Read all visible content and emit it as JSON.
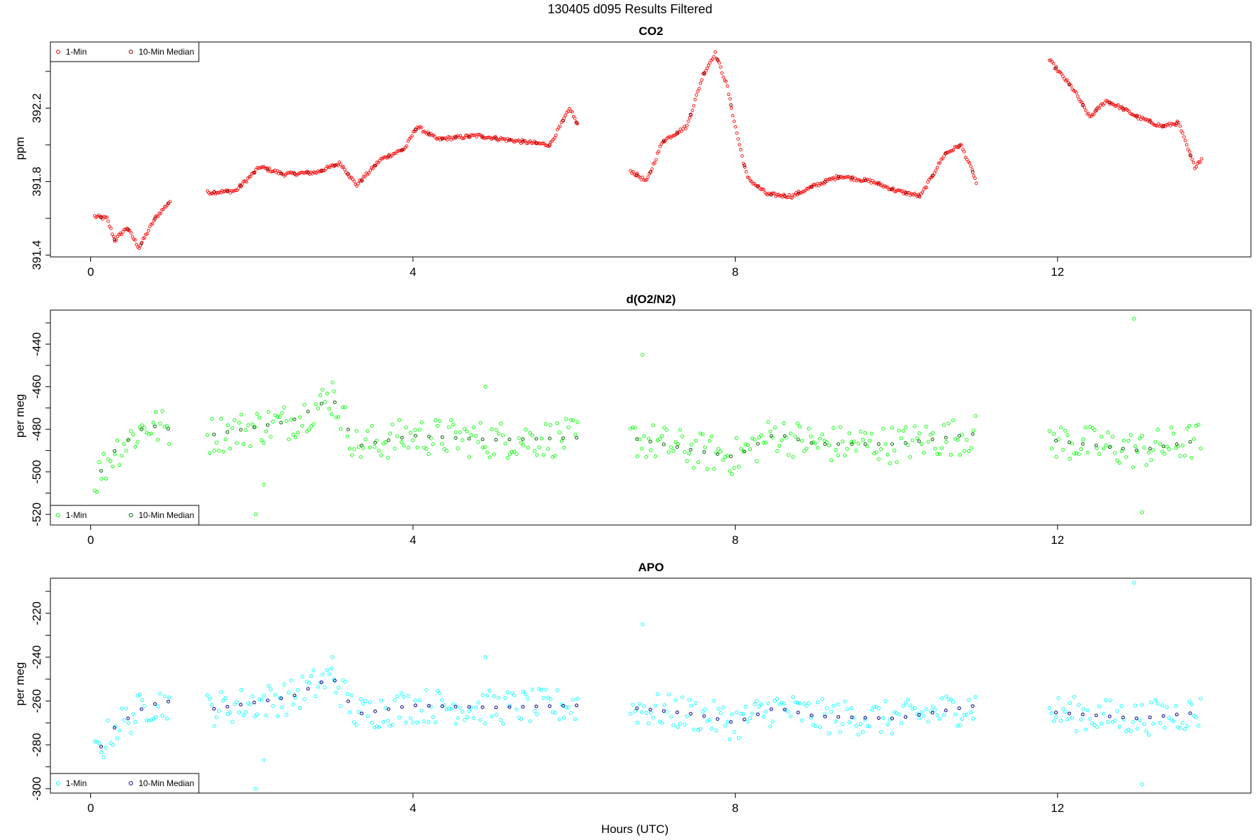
{
  "figure": {
    "title": "130405   d095   Results Filtered",
    "xlabel": "Hours (UTC)"
  },
  "chart_data": [
    {
      "type": "scatter",
      "title": "CO2",
      "ylabel": "ppm",
      "xlim": [
        -0.5,
        14.4
      ],
      "ylim": [
        391.39,
        392.56
      ],
      "xticks": [
        "0",
        "4",
        "8",
        "12"
      ],
      "yticks": [
        "391.4",
        "391.8",
        "392.2"
      ],
      "grid": false,
      "legend": {
        "position": "top-left",
        "entries": [
          "1-Min",
          "10-Min Median"
        ]
      },
      "colors": {
        "one_min": "#ff0000",
        "median": "#8b0000"
      },
      "series": [
        {
          "name": "1-Min",
          "x_range": [
            [
              0.05,
              1.0
            ],
            [
              1.45,
              6.05
            ],
            [
              6.7,
              11.0
            ],
            [
              11.9,
              13.8
            ]
          ],
          "y_path": [
            [
              0.05,
              391.61
            ],
            [
              0.2,
              391.6
            ],
            [
              0.3,
              391.48
            ],
            [
              0.45,
              391.55
            ],
            [
              0.6,
              391.44
            ],
            [
              0.8,
              391.6
            ],
            [
              1.0,
              391.7
            ],
            [
              1.45,
              391.74
            ],
            [
              1.8,
              391.75
            ],
            [
              2.1,
              391.88
            ],
            [
              2.4,
              391.84
            ],
            [
              2.8,
              391.85
            ],
            [
              3.1,
              391.9
            ],
            [
              3.3,
              391.78
            ],
            [
              3.6,
              391.92
            ],
            [
              3.9,
              391.98
            ],
            [
              4.05,
              392.1
            ],
            [
              4.3,
              392.03
            ],
            [
              4.8,
              392.05
            ],
            [
              5.3,
              392.02
            ],
            [
              5.7,
              392.0
            ],
            [
              5.95,
              392.2
            ],
            [
              6.05,
              392.1
            ],
            [
              6.7,
              391.86
            ],
            [
              6.9,
              391.8
            ],
            [
              7.1,
              392.02
            ],
            [
              7.4,
              392.1
            ],
            [
              7.6,
              392.38
            ],
            [
              7.75,
              392.5
            ],
            [
              7.9,
              392.32
            ],
            [
              8.0,
              392.1
            ],
            [
              8.15,
              391.82
            ],
            [
              8.4,
              391.73
            ],
            [
              8.7,
              391.72
            ],
            [
              9.0,
              391.78
            ],
            [
              9.3,
              391.83
            ],
            [
              9.7,
              391.8
            ],
            [
              10.0,
              391.75
            ],
            [
              10.3,
              391.72
            ],
            [
              10.6,
              391.95
            ],
            [
              10.8,
              392.0
            ],
            [
              10.85,
              391.95
            ],
            [
              10.95,
              391.85
            ],
            [
              11.0,
              391.78
            ],
            [
              11.9,
              392.46
            ],
            [
              12.2,
              392.3
            ],
            [
              12.4,
              392.15
            ],
            [
              12.6,
              392.24
            ],
            [
              12.8,
              392.2
            ],
            [
              13.0,
              392.15
            ],
            [
              13.3,
              392.1
            ],
            [
              13.5,
              392.12
            ],
            [
              13.6,
              392.0
            ],
            [
              13.7,
              391.88
            ],
            [
              13.8,
              391.93
            ]
          ]
        }
      ]
    },
    {
      "type": "scatter",
      "title": "d(O2/N2)",
      "ylabel": "per meg",
      "xlim": [
        -0.5,
        14.4
      ],
      "ylim": [
        -525,
        -424
      ],
      "xticks": [
        "0",
        "4",
        "8",
        "12"
      ],
      "yticks": [
        "-520",
        "-500",
        "-480",
        "-460",
        "-440"
      ],
      "grid": false,
      "legend": {
        "position": "bottom-left",
        "entries": [
          "1-Min",
          "10-Min Median"
        ]
      },
      "colors": {
        "one_min": "#00ff00",
        "median": "#006400"
      },
      "series": [
        {
          "name": "1-Min",
          "x_range": [
            [
              0.05,
              1.0
            ],
            [
              1.45,
              6.05
            ],
            [
              6.7,
              11.0
            ],
            [
              11.9,
              13.8
            ]
          ],
          "y_path": [
            [
              0.05,
              -504
            ],
            [
              0.3,
              -490
            ],
            [
              0.7,
              -478
            ],
            [
              1.0,
              -480
            ],
            [
              1.45,
              -483
            ],
            [
              2.5,
              -476
            ],
            [
              3.0,
              -465
            ],
            [
              3.3,
              -488
            ],
            [
              4.0,
              -483
            ],
            [
              5.0,
              -485
            ],
            [
              6.05,
              -484
            ],
            [
              6.7,
              -484
            ],
            [
              7.5,
              -490
            ],
            [
              8.0,
              -493
            ],
            [
              8.5,
              -482
            ],
            [
              9.0,
              -487
            ],
            [
              10.0,
              -487
            ],
            [
              11.0,
              -482
            ],
            [
              11.9,
              -485
            ],
            [
              13.0,
              -490
            ],
            [
              13.8,
              -485
            ]
          ],
          "outliers": [
            [
              2.05,
              -520
            ],
            [
              2.15,
              -506
            ],
            [
              3.0,
              -458
            ],
            [
              4.9,
              -460
            ],
            [
              6.85,
              -445
            ],
            [
              12.95,
              -428
            ],
            [
              13.05,
              -519
            ]
          ]
        }
      ]
    },
    {
      "type": "scatter",
      "title": "APO",
      "ylabel": "per meg",
      "xlim": [
        -0.5,
        14.4
      ],
      "ylim": [
        -302,
        -204
      ],
      "xticks": [
        "0",
        "4",
        "8",
        "12"
      ],
      "yticks": [
        "-300",
        "-280",
        "-260",
        "-240",
        "-220"
      ],
      "grid": false,
      "legend": {
        "position": "bottom-left",
        "entries": [
          "1-Min",
          "10-Min Median"
        ]
      },
      "colors": {
        "one_min": "#00ffff",
        "median": "#00008b"
      },
      "series": [
        {
          "name": "1-Min",
          "x_range": [
            [
              0.05,
              1.0
            ],
            [
              1.45,
              6.05
            ],
            [
              6.7,
              11.0
            ],
            [
              11.9,
              13.8
            ]
          ],
          "y_path": [
            [
              0.05,
              -285
            ],
            [
              0.3,
              -272
            ],
            [
              0.7,
              -262
            ],
            [
              1.0,
              -260
            ],
            [
              1.45,
              -264
            ],
            [
              2.5,
              -258
            ],
            [
              3.0,
              -249
            ],
            [
              3.3,
              -266
            ],
            [
              4.0,
              -262
            ],
            [
              5.0,
              -263
            ],
            [
              6.05,
              -262
            ],
            [
              6.7,
              -263
            ],
            [
              7.5,
              -266
            ],
            [
              8.0,
              -270
            ],
            [
              8.5,
              -263
            ],
            [
              9.0,
              -267
            ],
            [
              10.0,
              -268
            ],
            [
              11.0,
              -262
            ],
            [
              11.9,
              -265
            ],
            [
              13.0,
              -268
            ],
            [
              13.8,
              -265
            ]
          ],
          "outliers": [
            [
              2.05,
              -300
            ],
            [
              2.15,
              -287
            ],
            [
              3.0,
              -240
            ],
            [
              4.9,
              -240
            ],
            [
              6.85,
              -225
            ],
            [
              12.95,
              -206
            ],
            [
              13.05,
              -298
            ]
          ]
        }
      ]
    }
  ]
}
